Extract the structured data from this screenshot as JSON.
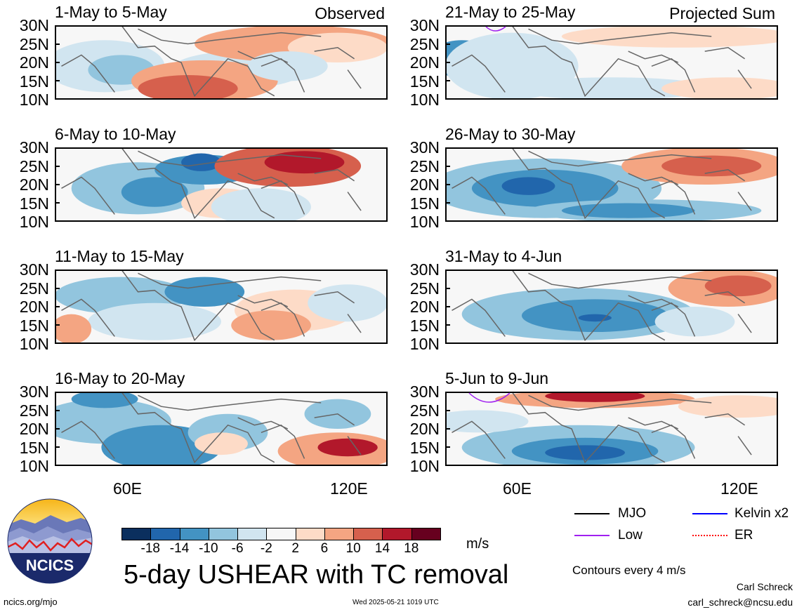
{
  "panels_left": [
    {
      "title": "1-May to 5-May",
      "tag": "Observed"
    },
    {
      "title": "6-May to 10-May",
      "tag": ""
    },
    {
      "title": "11-May to 15-May",
      "tag": ""
    },
    {
      "title": "16-May to 20-May",
      "tag": ""
    }
  ],
  "panels_right": [
    {
      "title": "21-May to 25-May",
      "tag": "Projected Sum"
    },
    {
      "title": "26-May to 30-May",
      "tag": ""
    },
    {
      "title": "31-May to 4-Jun",
      "tag": ""
    },
    {
      "title": "5-Jun to 9-Jun",
      "tag": ""
    }
  ],
  "lat_labels": [
    "30N",
    "25N",
    "20N",
    "15N",
    "10N"
  ],
  "lon_labels": [
    "60E",
    "120E"
  ],
  "colorbar": {
    "ticks": [
      "-18",
      "-14",
      "-10",
      "-6",
      "-2",
      "2",
      "6",
      "10",
      "14",
      "18"
    ],
    "colors": [
      "#0b2f5e",
      "#2166ac",
      "#4393c3",
      "#92c5de",
      "#d1e5f0",
      "#f7f7f7",
      "#fddbc7",
      "#f4a582",
      "#d6604d",
      "#b2182b",
      "#67001f"
    ],
    "unit": "m/s"
  },
  "legend": {
    "items": [
      {
        "label": "MJO",
        "color": "#000000"
      },
      {
        "label": "Kelvin x2",
        "color": "#0000ff"
      },
      {
        "label": "Low",
        "color": "#a020f0"
      },
      {
        "label": "ER",
        "color": "#ff0000"
      }
    ],
    "contours_note": "Contours every 4 m/s"
  },
  "main_title": "5-day USHEAR with TC removal",
  "logo_text": "NCICS",
  "footer": {
    "url": "ncics.org/mjo",
    "timestamp": "Wed 2025-05-21 1019 UTC",
    "author": "Carl Schreck",
    "email": "carl_schreck@ncsu.edu"
  }
}
